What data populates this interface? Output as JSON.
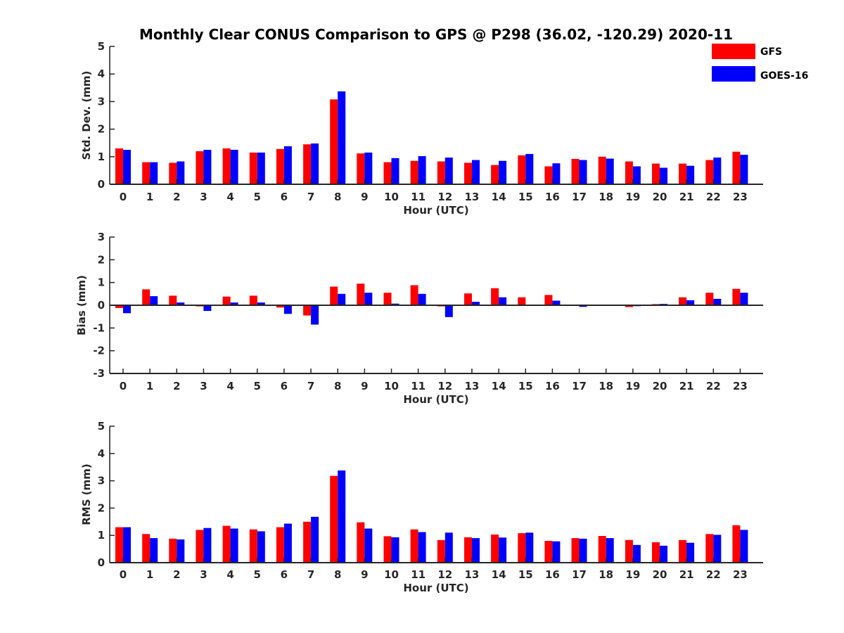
{
  "figure": {
    "title": "Monthly Clear CONUS Comparison to GPS @ P298 (36.02, -120.29) 2020-11"
  },
  "legend": {
    "entries": [
      {
        "name": "GFS",
        "color": "#ff0000"
      },
      {
        "name": "GOES-16",
        "color": "#0000ff"
      }
    ]
  },
  "chart_data": [
    {
      "type": "bar",
      "xlabel": "Hour (UTC)",
      "ylabel": "Std. Dev. (mm)",
      "ylim": [
        0,
        5
      ],
      "yticks": [
        0,
        1,
        2,
        3,
        4,
        5
      ],
      "categories": [
        "0",
        "1",
        "2",
        "3",
        "4",
        "5",
        "6",
        "7",
        "8",
        "9",
        "10",
        "11",
        "12",
        "13",
        "14",
        "15",
        "16",
        "17",
        "18",
        "19",
        "20",
        "21",
        "22",
        "23"
      ],
      "series": [
        {
          "name": "GFS",
          "color": "#ff0000",
          "values": [
            1.3,
            0.8,
            0.78,
            1.2,
            1.3,
            1.15,
            1.28,
            1.45,
            3.08,
            1.12,
            0.8,
            0.85,
            0.83,
            0.78,
            0.7,
            1.05,
            0.65,
            0.92,
            1.0,
            0.83,
            0.75,
            0.75,
            0.88,
            1.18
          ]
        },
        {
          "name": "GOES-16",
          "color": "#0000ff",
          "values": [
            1.25,
            0.8,
            0.83,
            1.25,
            1.25,
            1.15,
            1.38,
            1.48,
            3.37,
            1.15,
            0.95,
            1.02,
            0.97,
            0.88,
            0.85,
            1.1,
            0.76,
            0.88,
            0.93,
            0.65,
            0.6,
            0.67,
            0.97,
            1.07
          ]
        }
      ]
    },
    {
      "type": "bar",
      "xlabel": "Hour (UTC)",
      "ylabel": "Bias (mm)",
      "ylim": [
        -3,
        3
      ],
      "yticks": [
        -3,
        -2,
        -1,
        0,
        1,
        2,
        3
      ],
      "categories": [
        "0",
        "1",
        "2",
        "3",
        "4",
        "5",
        "6",
        "7",
        "8",
        "9",
        "10",
        "11",
        "12",
        "13",
        "14",
        "15",
        "16",
        "17",
        "18",
        "19",
        "20",
        "21",
        "22",
        "23"
      ],
      "series": [
        {
          "name": "GFS",
          "color": "#ff0000",
          "values": [
            -0.12,
            0.7,
            0.42,
            -0.05,
            0.38,
            0.42,
            -0.1,
            -0.45,
            0.82,
            0.95,
            0.55,
            0.88,
            -0.05,
            0.52,
            0.75,
            0.35,
            0.45,
            0.0,
            -0.02,
            -0.08,
            0.05,
            0.35,
            0.55,
            0.72
          ]
        },
        {
          "name": "GOES-16",
          "color": "#0000ff",
          "values": [
            -0.35,
            0.4,
            0.12,
            -0.25,
            0.12,
            0.12,
            -0.38,
            -0.85,
            0.5,
            0.55,
            0.07,
            0.5,
            -0.52,
            0.15,
            0.35,
            0.03,
            0.2,
            -0.07,
            -0.02,
            -0.04,
            0.06,
            0.22,
            0.28,
            0.55
          ]
        }
      ]
    },
    {
      "type": "bar",
      "xlabel": "Hour (UTC)",
      "ylabel": "RMS (mm)",
      "ylim": [
        0,
        5
      ],
      "yticks": [
        0,
        1,
        2,
        3,
        4,
        5
      ],
      "categories": [
        "0",
        "1",
        "2",
        "3",
        "4",
        "5",
        "6",
        "7",
        "8",
        "9",
        "10",
        "11",
        "12",
        "13",
        "14",
        "15",
        "16",
        "17",
        "18",
        "19",
        "20",
        "21",
        "22",
        "23"
      ],
      "series": [
        {
          "name": "GFS",
          "color": "#ff0000",
          "values": [
            1.3,
            1.05,
            0.88,
            1.2,
            1.35,
            1.22,
            1.3,
            1.5,
            3.18,
            1.48,
            0.97,
            1.22,
            0.83,
            0.93,
            1.03,
            1.08,
            0.8,
            0.9,
            0.98,
            0.83,
            0.75,
            0.83,
            1.05,
            1.37
          ]
        },
        {
          "name": "GOES-16",
          "color": "#0000ff",
          "values": [
            1.3,
            0.9,
            0.85,
            1.27,
            1.25,
            1.15,
            1.43,
            1.68,
            3.38,
            1.25,
            0.93,
            1.12,
            1.1,
            0.9,
            0.92,
            1.1,
            0.78,
            0.88,
            0.9,
            0.65,
            0.62,
            0.73,
            1.02,
            1.2
          ]
        }
      ]
    }
  ]
}
